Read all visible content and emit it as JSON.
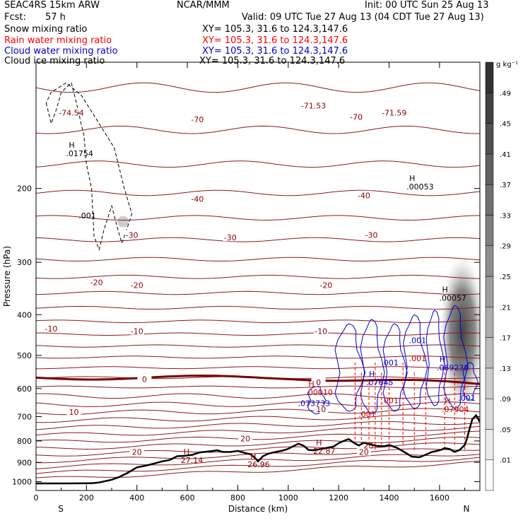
{
  "header": {
    "left_title": "SEAC4RS 15km ARW",
    "center_title": "NCAR/MMM",
    "init": "Init: 00 UTC Sun 25 Aug 13",
    "fcst_label": "Fcst:",
    "fcst_value": "57 h",
    "valid": "Valid: 09 UTC Tue 27 Aug 13 (04 CDT Tue 27 Aug 13)",
    "fields": [
      {
        "name": "Snow mixing ratio",
        "xy": "XY= 105.3, 31.6 to 124.3,147.6",
        "color": "#000000"
      },
      {
        "name": "Rain water mixing ratio",
        "xy": "XY= 105.3, 31.6 to 124.3,147.6",
        "color": "#ff0000"
      },
      {
        "name": "Cloud water mixing ratio",
        "xy": "XY= 105.3, 31.6 to 124.3,147.6",
        "color": "#0000cc"
      },
      {
        "name": "Cloud ice mixing ratio",
        "xy": "XY= 105.3, 31.6 to 124.3,147.6",
        "color": "#000000"
      }
    ]
  },
  "chart_data": {
    "type": "contour",
    "xlabel": "Distance (km)",
    "ylabel": "Pressure (hPa)",
    "xlim": [
      0,
      1760
    ],
    "ylim": [
      1050,
      100
    ],
    "x_ticks": [
      0,
      200,
      400,
      600,
      800,
      1000,
      1200,
      1400,
      1600
    ],
    "y_ticks": [
      200,
      300,
      400,
      500,
      600,
      700,
      800,
      900,
      1000
    ],
    "y_scale": "log",
    "x_endpoints": {
      "left": "S",
      "right": "N"
    },
    "colorbar": {
      "units": "g kg⁻¹",
      "levels": [
        ".01",
        ".05",
        ".09",
        ".13",
        ".17",
        ".21",
        ".25",
        ".29",
        ".33",
        ".37",
        ".41",
        ".45",
        ".49"
      ]
    },
    "temperature_labels": [
      {
        "x": 140,
        "p": 132,
        "text": "-74.54"
      },
      {
        "x": 640,
        "p": 137,
        "text": "-70"
      },
      {
        "x": 1100,
        "p": 127,
        "text": "-71.53"
      },
      {
        "x": 1270,
        "p": 135,
        "text": "-70"
      },
      {
        "x": 1420,
        "p": 132,
        "text": "-71.59"
      },
      {
        "x": 640,
        "p": 212,
        "text": "-40"
      },
      {
        "x": 1300,
        "p": 208,
        "text": "-40"
      },
      {
        "x": 380,
        "p": 258,
        "text": "-30"
      },
      {
        "x": 770,
        "p": 262,
        "text": "-30"
      },
      {
        "x": 1330,
        "p": 258,
        "text": "-30"
      },
      {
        "x": 240,
        "p": 335,
        "text": "-20"
      },
      {
        "x": 400,
        "p": 340,
        "text": "-20"
      },
      {
        "x": 1150,
        "p": 340,
        "text": "-20"
      },
      {
        "x": 60,
        "p": 432,
        "text": "-10"
      },
      {
        "x": 400,
        "p": 438,
        "text": "-10"
      },
      {
        "x": 1130,
        "p": 438,
        "text": "-10"
      },
      {
        "x": 430,
        "p": 570,
        "text": "0"
      },
      {
        "x": 1120,
        "p": 580,
        "text": "0"
      },
      {
        "x": 150,
        "p": 682,
        "text": "10"
      },
      {
        "x": 1130,
        "p": 672,
        "text": "10"
      },
      {
        "x": 400,
        "p": 850,
        "text": "20"
      },
      {
        "x": 830,
        "p": 790,
        "text": "20"
      },
      {
        "x": 1300,
        "p": 850,
        "text": "20"
      }
    ],
    "extrema": [
      {
        "x": 130,
        "p": 165,
        "text": ".01754",
        "mark": "H",
        "color": "#000000"
      },
      {
        "x": 180,
        "p": 232,
        "text": ".001",
        "mark": "",
        "color": "#000000"
      },
      {
        "x": 1480,
        "p": 198,
        "text": ".00053",
        "mark": "H",
        "color": "#000000"
      },
      {
        "x": 1610,
        "p": 365,
        "text": ".00057",
        "mark": "H",
        "color": "#000000"
      },
      {
        "x": 1080,
        "p": 612,
        "text": ".00010",
        "mark": "H",
        "color": "#cc0000"
      },
      {
        "x": 1050,
        "p": 650,
        "text": ".073733",
        "mark": "",
        "color": "#0000cc"
      },
      {
        "x": 1320,
        "p": 580,
        "text": ".07645",
        "mark": "H",
        "color": "#0000cc"
      },
      {
        "x": 1380,
        "p": 520,
        "text": ".001",
        "mark": "",
        "color": "#0000cc"
      },
      {
        "x": 1490,
        "p": 460,
        "text": ".001",
        "mark": "",
        "color": "#0000cc"
      },
      {
        "x": 1490,
        "p": 508,
        "text": ".001",
        "mark": "",
        "color": "#cc0000"
      },
      {
        "x": 1600,
        "p": 535,
        "text": ".069230",
        "mark": "H",
        "color": "#0000cc"
      },
      {
        "x": 1685,
        "p": 632,
        "text": ".001",
        "mark": "",
        "color": "#0000cc"
      },
      {
        "x": 1620,
        "p": 672,
        "text": ".07904",
        "mark": "H",
        "color": "#cc0000"
      },
      {
        "x": 1380,
        "p": 640,
        "text": ".001",
        "mark": "",
        "color": "#cc0000"
      },
      {
        "x": 1290,
        "p": 690,
        "text": ".001",
        "mark": "",
        "color": "#cc0000"
      },
      {
        "x": 1310,
        "p": 820,
        "text": "20",
        "mark": "",
        "color": "#8b0000"
      },
      {
        "x": 1110,
        "p": 845,
        "text": "22.87",
        "mark": "H",
        "color": "#8b0000"
      },
      {
        "x": 585,
        "p": 888,
        "text": "27.14",
        "mark": "H",
        "color": "#8b0000"
      },
      {
        "x": 850,
        "p": 910,
        "text": "26.96",
        "mark": "H",
        "color": "#8b0000"
      }
    ],
    "terrain": [
      [
        0,
        1010
      ],
      [
        120,
        1010
      ],
      [
        220,
        1009
      ],
      [
        250,
        1005
      ],
      [
        300,
        990
      ],
      [
        330,
        975
      ],
      [
        360,
        955
      ],
      [
        380,
        940
      ],
      [
        400,
        925
      ],
      [
        440,
        915
      ],
      [
        470,
        905
      ],
      [
        500,
        895
      ],
      [
        530,
        888
      ],
      [
        560,
        870
      ],
      [
        590,
        868
      ],
      [
        620,
        863
      ],
      [
        650,
        852
      ],
      [
        680,
        848
      ],
      [
        700,
        845
      ],
      [
        720,
        842
      ],
      [
        740,
        850
      ],
      [
        770,
        850
      ],
      [
        800,
        845
      ],
      [
        830,
        855
      ],
      [
        850,
        860
      ],
      [
        870,
        880
      ],
      [
        880,
        895
      ],
      [
        900,
        870
      ],
      [
        920,
        858
      ],
      [
        950,
        850
      ],
      [
        980,
        843
      ],
      [
        1000,
        835
      ],
      [
        1040,
        812
      ],
      [
        1060,
        820
      ],
      [
        1080,
        840
      ],
      [
        1100,
        842
      ],
      [
        1140,
        834
      ],
      [
        1180,
        825
      ],
      [
        1200,
        810
      ],
      [
        1220,
        800
      ],
      [
        1240,
        792
      ],
      [
        1260,
        808
      ],
      [
        1280,
        820
      ],
      [
        1300,
        808
      ],
      [
        1320,
        814
      ],
      [
        1350,
        822
      ],
      [
        1380,
        824
      ],
      [
        1400,
        818
      ],
      [
        1430,
        830
      ],
      [
        1460,
        850
      ],
      [
        1490,
        872
      ],
      [
        1520,
        875
      ],
      [
        1550,
        860
      ],
      [
        1570,
        850
      ],
      [
        1590,
        845
      ],
      [
        1610,
        838
      ],
      [
        1620,
        832
      ],
      [
        1640,
        836
      ],
      [
        1660,
        850
      ],
      [
        1680,
        840
      ],
      [
        1700,
        818
      ],
      [
        1710,
        785
      ],
      [
        1720,
        745
      ],
      [
        1730,
        710
      ],
      [
        1745,
        695
      ],
      [
        1760,
        720
      ]
    ]
  }
}
